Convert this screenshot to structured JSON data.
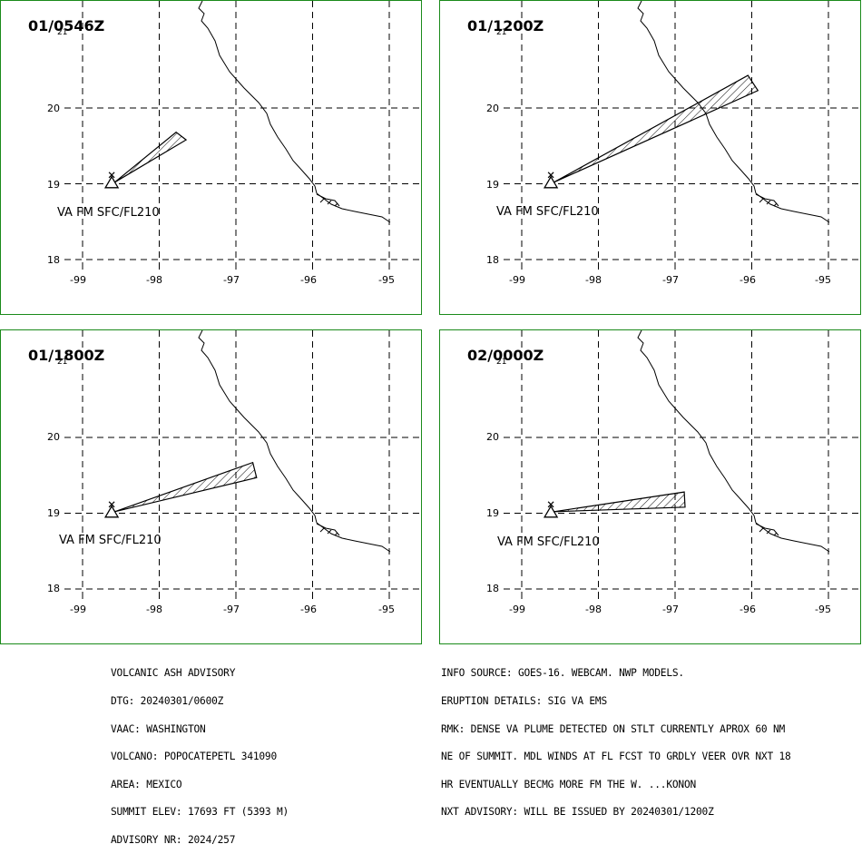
{
  "panels": [
    {
      "time": "01/0546Z",
      "sub": "21",
      "label": "VA FM SFC/FL210",
      "plume": [
        [
          -98.58,
          19.02
        ],
        [
          -97.78,
          19.68
        ],
        [
          -97.65,
          19.58
        ]
      ]
    },
    {
      "time": "01/1200Z",
      "sub": "21",
      "label": "VA FM SFC/FL210",
      "plume": [
        [
          -98.58,
          19.02
        ],
        [
          -96.05,
          20.43
        ],
        [
          -95.92,
          20.23
        ]
      ]
    },
    {
      "time": "01/1800Z",
      "sub": "21",
      "label": "VA FM SFC/FL210",
      "plume": [
        [
          -98.58,
          19.02
        ],
        [
          -96.78,
          19.67
        ],
        [
          -96.73,
          19.47
        ]
      ]
    },
    {
      "time": "02/0000Z",
      "sub": "21",
      "label": "VA FM SFC/FL210",
      "plume": [
        [
          -98.58,
          19.02
        ],
        [
          -96.88,
          19.28
        ],
        [
          -96.87,
          19.08
        ]
      ]
    }
  ],
  "axes": {
    "lat_ticks": [
      "20",
      "19",
      "18"
    ],
    "lon_ticks": [
      "-99",
      "-98",
      "-97",
      "-96",
      "-95"
    ]
  },
  "volcano": {
    "lon": -98.62,
    "lat": 19.02
  },
  "advisory": {
    "lines": [
      "VOLCANIC ASH ADVISORY",
      "DTG: 20240301/0600Z",
      "VAAC: WASHINGTON",
      "VOLCANO: POPOCATEPETL 341090",
      "AREA: MEXICO",
      "SUMMIT ELEV: 17693 FT (5393 M)",
      "ADVISORY NR: 2024/257"
    ]
  },
  "info": {
    "lines": [
      "INFO SOURCE: GOES-16. WEBCAM. NWP MODELS.",
      "ERUPTION DETAILS: SIG VA EMS",
      "RMK: DENSE VA PLUME DETECTED ON STLT CURRENTLY APROX 60 NM",
      "NE OF SUMMIT. MDL WINDS AT FL FCST TO GRDLY VEER OVR NXT 18",
      "HR EVENTUALLY BECMG MORE FM THE W. ...KONON",
      "NXT ADVISORY: WILL BE ISSUED BY 20240301/1200Z"
    ]
  },
  "colors": {
    "border": "#1a8a1a",
    "line": "#000000"
  }
}
